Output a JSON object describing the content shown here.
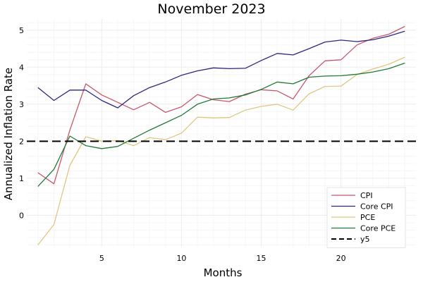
{
  "chart_data": {
    "type": "line",
    "title": "November 2023",
    "xlabel": "Months",
    "ylabel": "Annualized Inflation Rate",
    "xlim": [
      0.3,
      24.7
    ],
    "ylim": [
      -0.85,
      5.3
    ],
    "xticks": [
      5,
      10,
      15,
      20
    ],
    "yticks": [
      0,
      1,
      2,
      3,
      4,
      5
    ],
    "grid": true,
    "legend_position": "bottom-right",
    "x": [
      1,
      2,
      3,
      4,
      5,
      6,
      7,
      8,
      9,
      10,
      11,
      12,
      13,
      14,
      15,
      16,
      17,
      18,
      19,
      20,
      21,
      22,
      23,
      24
    ],
    "series": [
      {
        "name": "CPI",
        "color": "#c8576b",
        "style": "solid",
        "values": [
          1.15,
          0.85,
          2.3,
          3.55,
          3.25,
          3.05,
          2.85,
          3.05,
          2.78,
          2.93,
          3.26,
          3.12,
          3.07,
          3.27,
          3.39,
          3.36,
          3.14,
          3.77,
          4.17,
          4.2,
          4.6,
          4.78,
          4.89,
          5.1
        ]
      },
      {
        "name": "Core CPI",
        "color": "#2d287f",
        "style": "solid",
        "values": [
          3.45,
          3.1,
          3.38,
          3.38,
          3.1,
          2.9,
          3.23,
          3.45,
          3.6,
          3.78,
          3.9,
          3.98,
          3.96,
          3.97,
          4.18,
          4.37,
          4.33,
          4.5,
          4.68,
          4.73,
          4.69,
          4.74,
          4.84,
          4.97
        ]
      },
      {
        "name": "PCE",
        "color": "#dfc77f",
        "style": "solid",
        "values": [
          -0.8,
          -0.25,
          1.35,
          2.12,
          2.0,
          2.02,
          1.88,
          2.1,
          2.04,
          2.22,
          2.65,
          2.63,
          2.64,
          2.84,
          2.94,
          3.0,
          2.84,
          3.28,
          3.48,
          3.49,
          3.8,
          3.95,
          4.08,
          4.27
        ]
      },
      {
        "name": "Core PCE",
        "color": "#207a38",
        "style": "solid",
        "values": [
          0.78,
          1.24,
          2.14,
          1.88,
          1.8,
          1.86,
          2.08,
          2.3,
          2.5,
          2.7,
          3.0,
          3.14,
          3.17,
          3.25,
          3.4,
          3.6,
          3.55,
          3.73,
          3.76,
          3.77,
          3.81,
          3.87,
          3.96,
          4.11
        ]
      },
      {
        "name": "y5",
        "color": "#000000",
        "style": "dashed",
        "constant": 2.0
      }
    ]
  }
}
